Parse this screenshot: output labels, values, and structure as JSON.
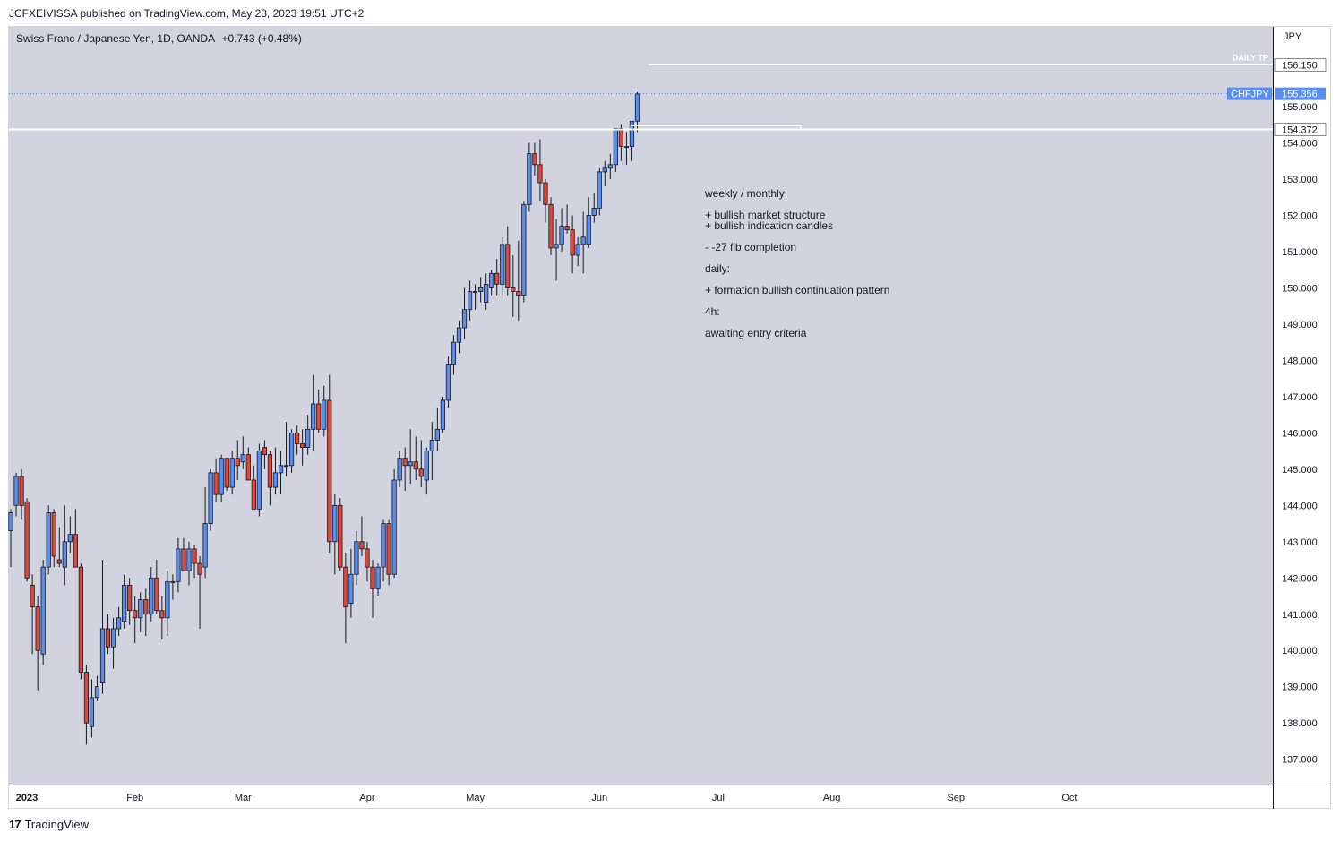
{
  "publisher": "JCFXEIVISSA published on TradingView.com, May 28, 2023 19:51 UTC+2",
  "legend": {
    "symbol": "Swiss Franc / Japanese Yen, 1D, OANDA",
    "change": "+0.743 (+0.48%)"
  },
  "colors": {
    "bullish": "#5b8def",
    "bearish": "#e0473b",
    "background": "#d1d4de",
    "price_line": "#2962ff"
  },
  "notes": [
    {
      "text": "weekly / monthly:",
      "gap": 0
    },
    {
      "text": "+ bullish market structure",
      "gap": 12
    },
    {
      "text": "+ bullish indication candles",
      "gap": 0
    },
    {
      "text": "- -27 fib completion",
      "gap": 12
    },
    {
      "text": "daily:",
      "gap": 12
    },
    {
      "text": "+ formation bullish continuation pattern",
      "gap": 12
    },
    {
      "text": "4h:",
      "gap": 12
    },
    {
      "text": "awaiting entry criteria",
      "gap": 12
    }
  ],
  "footer": {
    "logo": "17",
    "brand": "TradingView"
  },
  "chart_data": {
    "type": "candlestick",
    "symbol": "CHFJPY",
    "currency": "JPY",
    "x_axis_labels": [
      "2023",
      "Feb",
      "Mar",
      "Apr",
      "May",
      "Jun",
      "Jul",
      "Aug",
      "Sep",
      "Oct"
    ],
    "y_axis_ticks": [
      "137.000",
      "138.000",
      "139.000",
      "140.000",
      "141.000",
      "142.000",
      "143.000",
      "144.000",
      "145.000",
      "146.000",
      "147.000",
      "148.000",
      "149.000",
      "150.000",
      "151.000",
      "152.000",
      "153.000",
      "154.000",
      "155.000"
    ],
    "ylim": [
      136.3,
      157.2
    ],
    "last_price": {
      "label": "CHFJPY",
      "value": "155.356"
    },
    "levels": [
      {
        "name": "DAILY TP",
        "label": "DAILY TP",
        "value": "156.150",
        "price": 156.15
      },
      {
        "name": "support",
        "label": "",
        "value": "154.372",
        "price": 154.372
      }
    ],
    "candles": [
      {
        "d": "2022-12-30",
        "o": 143.3,
        "h": 143.9,
        "l": 142.3,
        "c": 143.8
      },
      {
        "d": "2023-01-02",
        "o": 144.0,
        "h": 144.9,
        "l": 143.7,
        "c": 144.8
      },
      {
        "d": "2023-01-03",
        "o": 144.8,
        "h": 145.0,
        "l": 143.6,
        "c": 144.0
      },
      {
        "d": "2023-01-04",
        "o": 144.1,
        "h": 144.2,
        "l": 141.9,
        "c": 142.0
      },
      {
        "d": "2023-01-05",
        "o": 141.8,
        "h": 142.1,
        "l": 139.9,
        "c": 141.2
      },
      {
        "d": "2023-01-06",
        "o": 141.2,
        "h": 141.5,
        "l": 138.9,
        "c": 140.0
      },
      {
        "d": "2023-01-09",
        "o": 139.9,
        "h": 142.5,
        "l": 139.6,
        "c": 142.3
      },
      {
        "d": "2023-01-10",
        "o": 142.3,
        "h": 144.0,
        "l": 142.1,
        "c": 143.8
      },
      {
        "d": "2023-01-11",
        "o": 143.8,
        "h": 143.9,
        "l": 142.3,
        "c": 142.6
      },
      {
        "d": "2023-01-12",
        "o": 142.5,
        "h": 143.4,
        "l": 142.3,
        "c": 142.4
      },
      {
        "d": "2023-01-13",
        "o": 142.3,
        "h": 144.0,
        "l": 141.8,
        "c": 143.0
      },
      {
        "d": "2023-01-16",
        "o": 143.0,
        "h": 143.7,
        "l": 142.7,
        "c": 143.2
      },
      {
        "d": "2023-01-17",
        "o": 143.2,
        "h": 143.9,
        "l": 142.3,
        "c": 142.3
      },
      {
        "d": "2023-01-18",
        "o": 142.3,
        "h": 142.4,
        "l": 139.2,
        "c": 139.4
      },
      {
        "d": "2023-01-19",
        "o": 139.4,
        "h": 139.6,
        "l": 137.4,
        "c": 138.0
      },
      {
        "d": "2023-01-20",
        "o": 137.9,
        "h": 139.2,
        "l": 137.6,
        "c": 138.7
      },
      {
        "d": "2023-01-23",
        "o": 138.7,
        "h": 139.3,
        "l": 138.6,
        "c": 139.0
      },
      {
        "d": "2023-01-24",
        "o": 139.1,
        "h": 142.5,
        "l": 138.8,
        "c": 140.6
      },
      {
        "d": "2023-01-25",
        "o": 140.6,
        "h": 141.0,
        "l": 139.9,
        "c": 140.1
      },
      {
        "d": "2023-01-26",
        "o": 140.1,
        "h": 140.9,
        "l": 139.5,
        "c": 140.6
      },
      {
        "d": "2023-01-27",
        "o": 140.6,
        "h": 141.2,
        "l": 140.4,
        "c": 140.9
      },
      {
        "d": "2023-01-30",
        "o": 140.8,
        "h": 142.1,
        "l": 140.6,
        "c": 141.8
      },
      {
        "d": "2023-01-31",
        "o": 141.8,
        "h": 142.0,
        "l": 140.7,
        "c": 141.1
      },
      {
        "d": "2023-02-01",
        "o": 141.1,
        "h": 141.5,
        "l": 140.2,
        "c": 140.9
      },
      {
        "d": "2023-02-02",
        "o": 140.9,
        "h": 141.6,
        "l": 140.5,
        "c": 141.4
      },
      {
        "d": "2023-02-03",
        "o": 141.4,
        "h": 141.7,
        "l": 140.4,
        "c": 141.0
      },
      {
        "d": "2023-02-06",
        "o": 141.0,
        "h": 142.3,
        "l": 140.8,
        "c": 142.0
      },
      {
        "d": "2023-02-07",
        "o": 142.0,
        "h": 142.5,
        "l": 141.0,
        "c": 141.1
      },
      {
        "d": "2023-02-08",
        "o": 141.1,
        "h": 141.5,
        "l": 140.3,
        "c": 140.9
      },
      {
        "d": "2023-02-09",
        "o": 140.9,
        "h": 142.2,
        "l": 140.4,
        "c": 141.9
      },
      {
        "d": "2023-02-10",
        "o": 141.9,
        "h": 142.1,
        "l": 141.4,
        "c": 141.9
      },
      {
        "d": "2023-02-13",
        "o": 141.9,
        "h": 143.1,
        "l": 141.6,
        "c": 142.8
      },
      {
        "d": "2023-02-14",
        "o": 142.8,
        "h": 143.1,
        "l": 142.2,
        "c": 142.2
      },
      {
        "d": "2023-02-15",
        "o": 142.2,
        "h": 143.0,
        "l": 141.8,
        "c": 142.8
      },
      {
        "d": "2023-02-16",
        "o": 142.8,
        "h": 142.9,
        "l": 142.0,
        "c": 142.4
      },
      {
        "d": "2023-02-17",
        "o": 142.4,
        "h": 142.6,
        "l": 140.6,
        "c": 142.1
      },
      {
        "d": "2023-02-20",
        "o": 142.3,
        "h": 144.5,
        "l": 142.0,
        "c": 143.5
      },
      {
        "d": "2023-02-21",
        "o": 143.5,
        "h": 145.0,
        "l": 143.3,
        "c": 144.9
      },
      {
        "d": "2023-02-22",
        "o": 144.9,
        "h": 145.3,
        "l": 144.1,
        "c": 144.3
      },
      {
        "d": "2023-02-23",
        "o": 144.3,
        "h": 145.4,
        "l": 144.1,
        "c": 145.3
      },
      {
        "d": "2023-02-24",
        "o": 145.3,
        "h": 145.3,
        "l": 144.4,
        "c": 144.5
      },
      {
        "d": "2023-02-27",
        "o": 144.5,
        "h": 145.5,
        "l": 144.3,
        "c": 145.3
      },
      {
        "d": "2023-02-28",
        "o": 145.3,
        "h": 145.8,
        "l": 144.7,
        "c": 145.1
      },
      {
        "d": "2023-03-01",
        "o": 145.2,
        "h": 145.9,
        "l": 145.0,
        "c": 145.4
      },
      {
        "d": "2023-03-02",
        "o": 145.4,
        "h": 145.6,
        "l": 144.7,
        "c": 144.7
      },
      {
        "d": "2023-03-03",
        "o": 144.7,
        "h": 145.1,
        "l": 143.9,
        "c": 143.9
      },
      {
        "d": "2023-03-06",
        "o": 143.9,
        "h": 145.7,
        "l": 143.7,
        "c": 145.5
      },
      {
        "d": "2023-03-07",
        "o": 145.6,
        "h": 145.8,
        "l": 145.0,
        "c": 145.4
      },
      {
        "d": "2023-03-08",
        "o": 145.4,
        "h": 145.5,
        "l": 144.0,
        "c": 144.5
      },
      {
        "d": "2023-03-09",
        "o": 144.5,
        "h": 145.6,
        "l": 144.3,
        "c": 144.9
      },
      {
        "d": "2023-03-10",
        "o": 144.9,
        "h": 145.5,
        "l": 144.3,
        "c": 145.1
      },
      {
        "d": "2023-03-13",
        "o": 145.1,
        "h": 146.3,
        "l": 144.8,
        "c": 145.1
      },
      {
        "d": "2023-03-14",
        "o": 145.1,
        "h": 146.1,
        "l": 144.9,
        "c": 146.0
      },
      {
        "d": "2023-03-15",
        "o": 146.0,
        "h": 146.2,
        "l": 145.4,
        "c": 145.7
      },
      {
        "d": "2023-03-16",
        "o": 145.7,
        "h": 146.1,
        "l": 145.1,
        "c": 145.6
      },
      {
        "d": "2023-03-17",
        "o": 145.6,
        "h": 146.5,
        "l": 145.4,
        "c": 146.1
      },
      {
        "d": "2023-03-20",
        "o": 146.1,
        "h": 147.6,
        "l": 145.5,
        "c": 146.8
      },
      {
        "d": "2023-03-21",
        "o": 146.8,
        "h": 147.2,
        "l": 146.0,
        "c": 146.1
      },
      {
        "d": "2023-03-22",
        "o": 146.1,
        "h": 147.3,
        "l": 145.9,
        "c": 146.9
      },
      {
        "d": "2023-03-23",
        "o": 146.9,
        "h": 147.6,
        "l": 142.7,
        "c": 143.0
      },
      {
        "d": "2023-03-24",
        "o": 143.0,
        "h": 144.3,
        "l": 142.1,
        "c": 144.0
      },
      {
        "d": "2023-03-27",
        "o": 144.0,
        "h": 144.2,
        "l": 142.2,
        "c": 142.3
      },
      {
        "d": "2023-03-28",
        "o": 142.3,
        "h": 142.7,
        "l": 140.2,
        "c": 141.2
      },
      {
        "d": "2023-03-29",
        "o": 141.3,
        "h": 142.8,
        "l": 140.9,
        "c": 142.1
      },
      {
        "d": "2023-03-30",
        "o": 142.1,
        "h": 143.3,
        "l": 141.8,
        "c": 143.0
      },
      {
        "d": "2023-03-31",
        "o": 143.0,
        "h": 143.7,
        "l": 142.6,
        "c": 142.8
      },
      {
        "d": "2023-04-03",
        "o": 142.8,
        "h": 143.0,
        "l": 141.9,
        "c": 142.3
      },
      {
        "d": "2023-04-04",
        "o": 142.3,
        "h": 142.5,
        "l": 140.9,
        "c": 141.7
      },
      {
        "d": "2023-04-05",
        "o": 141.7,
        "h": 142.4,
        "l": 141.5,
        "c": 142.3
      },
      {
        "d": "2023-04-06",
        "o": 142.3,
        "h": 143.6,
        "l": 141.9,
        "c": 143.5
      },
      {
        "d": "2023-04-07",
        "o": 143.5,
        "h": 143.6,
        "l": 141.8,
        "c": 142.1
      },
      {
        "d": "2023-04-10",
        "o": 142.1,
        "h": 145.0,
        "l": 142.0,
        "c": 144.7
      },
      {
        "d": "2023-04-11",
        "o": 144.7,
        "h": 145.5,
        "l": 144.5,
        "c": 145.3
      },
      {
        "d": "2023-04-12",
        "o": 145.3,
        "h": 145.6,
        "l": 144.4,
        "c": 145.1
      },
      {
        "d": "2023-04-13",
        "o": 145.1,
        "h": 146.1,
        "l": 144.6,
        "c": 145.2
      },
      {
        "d": "2023-04-14",
        "o": 145.2,
        "h": 145.9,
        "l": 144.7,
        "c": 145.0
      },
      {
        "d": "2023-04-17",
        "o": 145.0,
        "h": 145.8,
        "l": 144.5,
        "c": 144.8
      },
      {
        "d": "2023-04-18",
        "o": 144.7,
        "h": 145.6,
        "l": 144.3,
        "c": 145.5
      },
      {
        "d": "2023-04-19",
        "o": 145.5,
        "h": 146.3,
        "l": 144.7,
        "c": 145.8
      },
      {
        "d": "2023-04-20",
        "o": 145.8,
        "h": 146.7,
        "l": 145.5,
        "c": 146.1
      },
      {
        "d": "2023-04-21",
        "o": 146.1,
        "h": 147.0,
        "l": 146.0,
        "c": 146.9
      },
      {
        "d": "2023-04-24",
        "o": 146.9,
        "h": 148.1,
        "l": 146.7,
        "c": 147.9
      },
      {
        "d": "2023-04-25",
        "o": 147.9,
        "h": 148.7,
        "l": 147.6,
        "c": 148.5
      },
      {
        "d": "2023-04-26",
        "o": 148.5,
        "h": 149.1,
        "l": 148.2,
        "c": 148.9
      },
      {
        "d": "2023-04-27",
        "o": 148.9,
        "h": 150.0,
        "l": 148.6,
        "c": 149.4
      },
      {
        "d": "2023-04-28",
        "o": 149.4,
        "h": 150.2,
        "l": 149.1,
        "c": 149.9
      },
      {
        "d": "2023-05-01",
        "o": 149.9,
        "h": 150.1,
        "l": 149.4,
        "c": 149.9
      },
      {
        "d": "2023-05-02",
        "o": 149.9,
        "h": 150.3,
        "l": 149.6,
        "c": 150.0
      },
      {
        "d": "2023-05-03",
        "o": 149.6,
        "h": 150.4,
        "l": 149.4,
        "c": 150.1
      },
      {
        "d": "2023-05-04",
        "o": 150.0,
        "h": 150.5,
        "l": 149.8,
        "c": 150.4
      },
      {
        "d": "2023-05-05",
        "o": 150.4,
        "h": 150.8,
        "l": 149.8,
        "c": 150.1
      },
      {
        "d": "2023-05-08",
        "o": 150.1,
        "h": 151.4,
        "l": 149.8,
        "c": 151.2
      },
      {
        "d": "2023-05-09",
        "o": 151.2,
        "h": 151.7,
        "l": 149.8,
        "c": 150.0
      },
      {
        "d": "2023-05-10",
        "o": 150.0,
        "h": 150.9,
        "l": 149.2,
        "c": 149.9
      },
      {
        "d": "2023-05-11",
        "o": 149.9,
        "h": 151.3,
        "l": 149.1,
        "c": 149.8
      },
      {
        "d": "2023-05-12",
        "o": 149.8,
        "h": 152.4,
        "l": 149.6,
        "c": 152.3
      },
      {
        "d": "2023-05-15",
        "o": 152.3,
        "h": 154.0,
        "l": 152.1,
        "c": 153.7
      },
      {
        "d": "2023-05-16",
        "o": 153.7,
        "h": 154.0,
        "l": 153.1,
        "c": 153.4
      },
      {
        "d": "2023-05-17",
        "o": 153.4,
        "h": 154.1,
        "l": 152.4,
        "c": 152.9
      },
      {
        "d": "2023-05-18",
        "o": 152.9,
        "h": 153.0,
        "l": 151.8,
        "c": 152.3
      },
      {
        "d": "2023-05-19",
        "o": 152.3,
        "h": 152.5,
        "l": 150.9,
        "c": 151.1
      },
      {
        "d": "2023-05-22",
        "o": 151.1,
        "h": 151.9,
        "l": 150.2,
        "c": 151.2
      },
      {
        "d": "2023-05-23",
        "o": 151.2,
        "h": 152.2,
        "l": 151.0,
        "c": 151.7
      },
      {
        "d": "2023-05-24",
        "o": 151.7,
        "h": 152.3,
        "l": 151.5,
        "c": 151.6
      },
      {
        "d": "2023-05-25",
        "o": 151.6,
        "h": 152.0,
        "l": 150.4,
        "c": 150.9
      },
      {
        "d": "2023-05-26",
        "o": 150.9,
        "h": 151.4,
        "l": 150.6,
        "c": 151.2
      },
      {
        "d": "2023-05-29",
        "o": 151.2,
        "h": 152.1,
        "l": 150.4,
        "c": 151.4
      },
      {
        "d": "2023-05-30",
        "o": 151.2,
        "h": 152.5,
        "l": 151.1,
        "c": 152.0
      },
      {
        "d": "2023-05-31",
        "o": 152.0,
        "h": 152.6,
        "l": 151.8,
        "c": 152.2
      },
      {
        "d": "2023-06-01",
        "o": 152.2,
        "h": 153.3,
        "l": 152.0,
        "c": 153.2
      },
      {
        "d": "2023-06-02",
        "o": 153.2,
        "h": 153.5,
        "l": 152.8,
        "c": 153.3
      },
      {
        "d": "2023-06-05",
        "o": 153.3,
        "h": 153.7,
        "l": 153.0,
        "c": 153.4
      },
      {
        "d": "2023-06-06",
        "o": 153.4,
        "h": 154.3,
        "l": 153.2,
        "c": 154.4
      },
      {
        "d": "2023-06-07",
        "o": 154.4,
        "h": 154.5,
        "l": 153.5,
        "c": 153.9
      },
      {
        "d": "2023-06-08",
        "o": 153.9,
        "h": 154.3,
        "l": 153.4,
        "c": 153.9
      },
      {
        "d": "2023-06-09",
        "o": 153.9,
        "h": 154.5,
        "l": 153.5,
        "c": 154.6
      },
      {
        "d": "2023-06-12",
        "o": 154.6,
        "h": 155.4,
        "l": 154.3,
        "c": 155.35
      }
    ]
  }
}
